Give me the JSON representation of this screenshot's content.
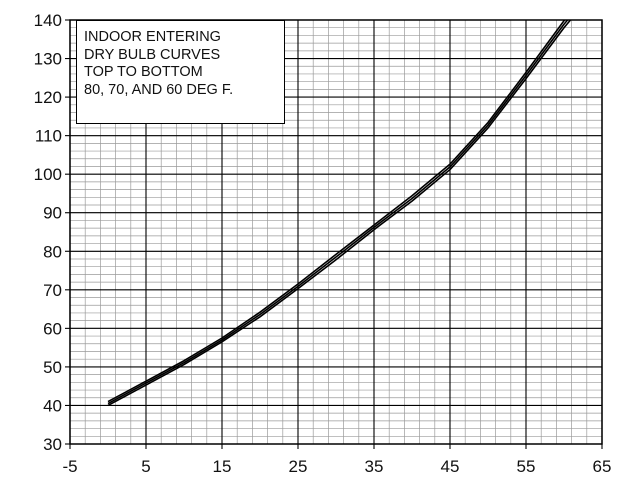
{
  "chart_data": {
    "type": "line",
    "title": "",
    "xlabel": "",
    "ylabel": "",
    "xlim": [
      -5,
      65
    ],
    "ylim": [
      30,
      140
    ],
    "x_ticks": [
      "-5",
      "5",
      "15",
      "25",
      "35",
      "45",
      "55",
      "65"
    ],
    "y_ticks": [
      "30",
      "40",
      "50",
      "60",
      "70",
      "80",
      "90",
      "100",
      "110",
      "120",
      "130",
      "140"
    ],
    "major_x_step": 10,
    "major_y_step": 10,
    "minor_x_step": 2,
    "minor_y_step": 2,
    "grid": true,
    "annotation": [
      "INDOOR ENTERING",
      "DRY BULB CURVES",
      "TOP TO BOTTOM",
      "80, 70, AND 60 DEG F."
    ],
    "annotation_placement": "top-left",
    "colors": {
      "lines": "#000000",
      "major_grid": "#000000",
      "minor_grid": "#9a9a9a"
    },
    "series": [
      {
        "x": [
          0,
          5,
          10,
          15,
          20,
          25,
          30,
          35,
          40,
          45,
          50,
          55,
          60,
          62
        ],
        "y": [
          41,
          46.3,
          51.6,
          57.5,
          64.2,
          71.5,
          79.2,
          86.8,
          94.4,
          102.6,
          113.4,
          126.4,
          139.8,
          144.5
        ]
      },
      {
        "x": [
          0,
          5,
          10,
          15,
          20,
          25,
          30,
          35,
          40,
          45,
          50,
          55,
          60,
          62
        ],
        "y": [
          40.5,
          45.8,
          51.1,
          57,
          63.6,
          70.9,
          78.5,
          86.2,
          93.7,
          101.9,
          112.7,
          125.6,
          138.9,
          143.6
        ]
      },
      {
        "x": [
          0,
          5,
          10,
          15,
          20,
          25,
          30,
          35,
          40,
          45,
          50,
          55,
          60,
          62
        ],
        "y": [
          40,
          45.3,
          50.6,
          56.5,
          63,
          70.3,
          77.8,
          85.6,
          93,
          101.2,
          112,
          124.8,
          138,
          142.7
        ]
      }
    ]
  }
}
